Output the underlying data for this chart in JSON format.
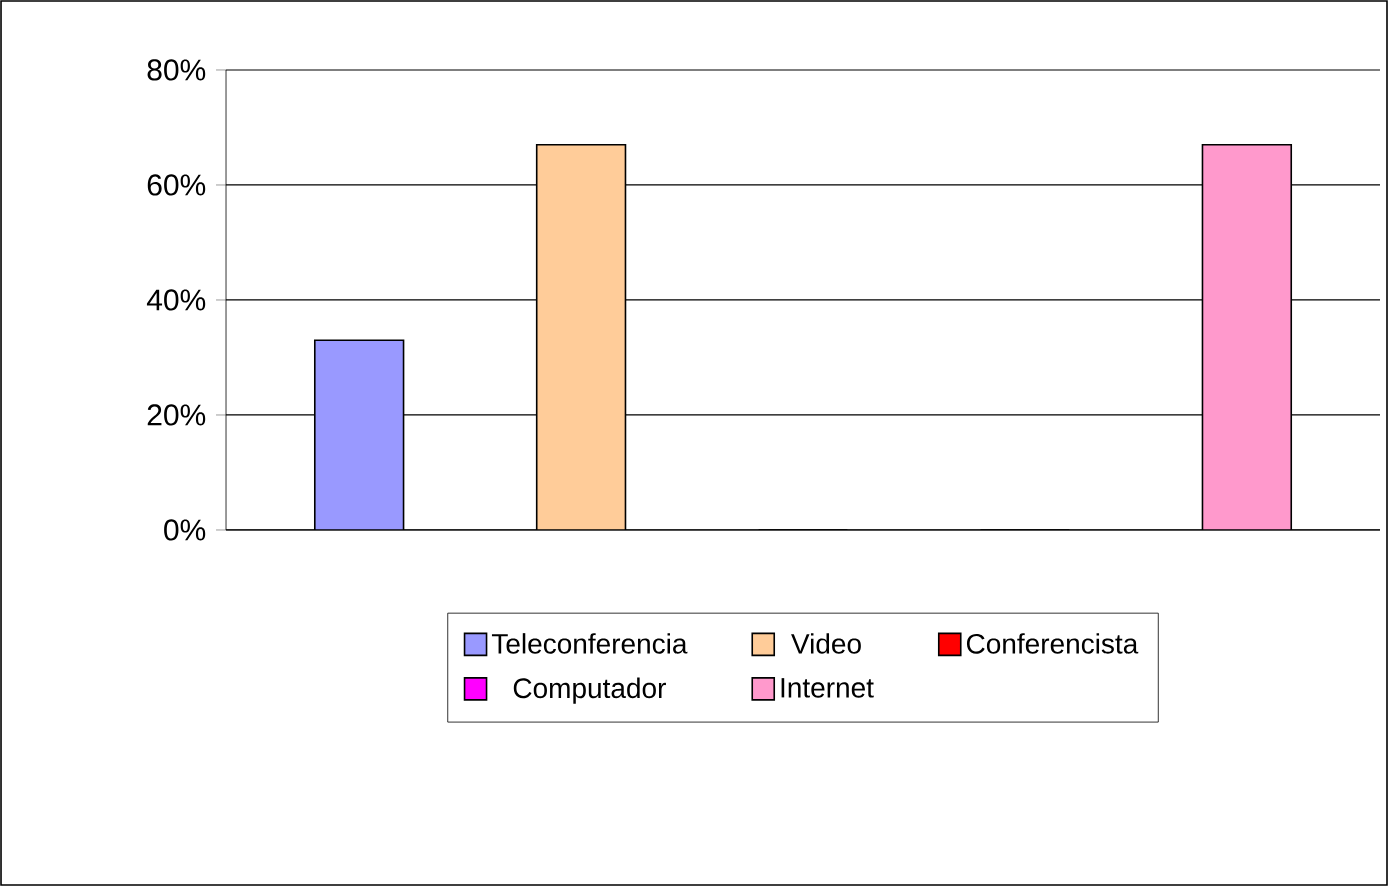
{
  "chart_data": {
    "type": "bar",
    "categories": [
      null
    ],
    "series": [
      {
        "name": "Teleconferencia",
        "color": "#9999ff",
        "values": [
          33
        ]
      },
      {
        "name": "Video",
        "color": "#ffcc99",
        "values": [
          67
        ]
      },
      {
        "name": "Conferencista",
        "color": "#ff0000",
        "values": [
          0
        ]
      },
      {
        "name": "Computador",
        "color": "#ff00ff",
        "values": [
          0
        ]
      },
      {
        "name": "Internet",
        "color": "#ff99cc",
        "values": [
          67
        ]
      }
    ],
    "ylim": [
      0,
      80
    ],
    "yticks": [
      {
        "value": 0,
        "label": "0%"
      },
      {
        "value": 20,
        "label": "20%"
      },
      {
        "value": 40,
        "label": "40%"
      },
      {
        "value": 60,
        "label": "60%"
      },
      {
        "value": 80,
        "label": "80%"
      }
    ],
    "grid": "y",
    "legend": "bottom"
  }
}
